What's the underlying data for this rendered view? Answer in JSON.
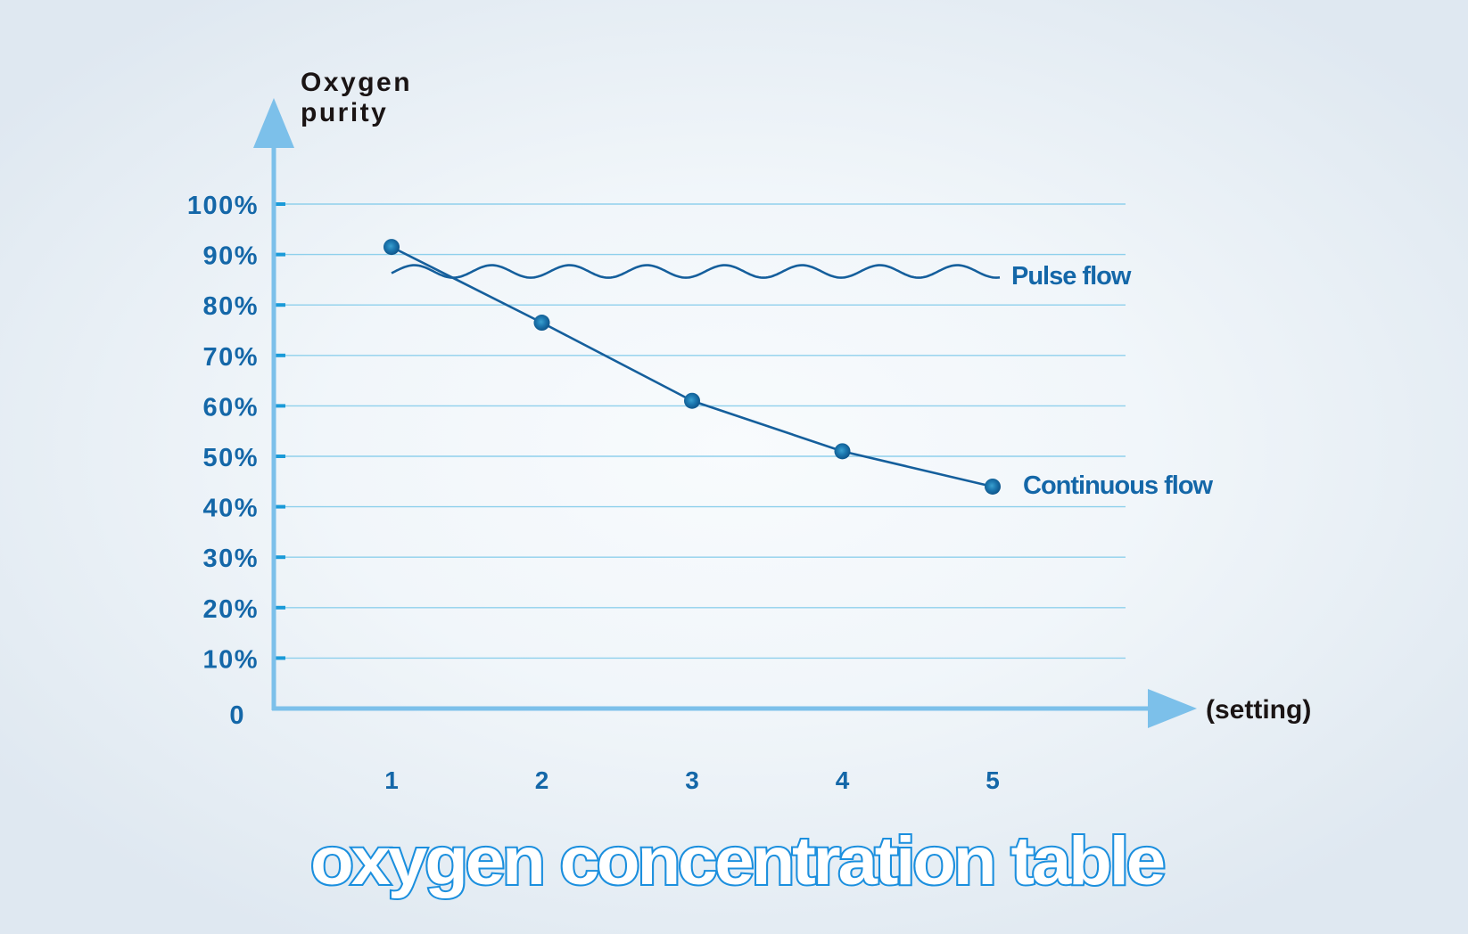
{
  "chart_data": {
    "type": "line",
    "title": "oxygen concentration table",
    "xlabel": "(setting)",
    "ylabel": "Oxygen purity",
    "ylabel_lines": [
      "Oxygen",
      "purity"
    ],
    "x": [
      1,
      2,
      3,
      4,
      5
    ],
    "x_tick_labels": [
      "1",
      "2",
      "3",
      "4",
      "5"
    ],
    "y_tick_labels": [
      "0",
      "10%",
      "20%",
      "30%",
      "40%",
      "50%",
      "60%",
      "70%",
      "80%",
      "90%",
      "100%"
    ],
    "ylim": [
      0,
      100
    ],
    "grid": true,
    "legend_position": "inline-right",
    "series": [
      {
        "name": "Continuous flow",
        "style": "line-with-markers",
        "values": [
          91.5,
          76.5,
          61,
          51,
          44
        ]
      },
      {
        "name": "Pulse flow",
        "style": "wavy-line",
        "approx_value": 87,
        "x_range": [
          1,
          5.2
        ]
      }
    ],
    "colors": {
      "series_line": "#155f9c",
      "axis": "#7cc0ea",
      "grid": "#8fd0ec",
      "tick_text": "#1467a8",
      "axis_title_text": "#1a1414",
      "title_stroke": "#1b8fde",
      "title_fill": "#ffffff"
    }
  }
}
